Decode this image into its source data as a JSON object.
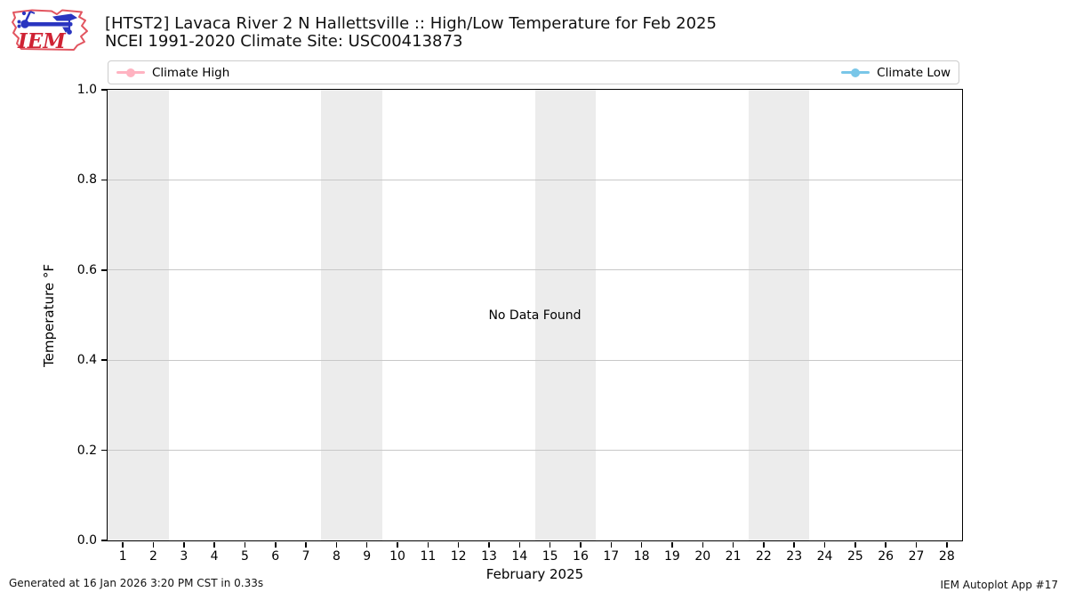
{
  "header": {
    "title_line1": "[HTST2] Lavaca River 2 N Hallettsville :: High/Low Temperature for Feb 2025",
    "title_line2": "NCEI 1991-2020 Climate Site: USC00413873",
    "logo_text": "IEM"
  },
  "legend": {
    "items": [
      {
        "label": "Climate High",
        "color": "#ffb3c1"
      },
      {
        "label": "Climate Low",
        "color": "#79c6e8"
      }
    ]
  },
  "chart_data": {
    "type": "line",
    "title": "[HTST2] Lavaca River 2 N Hallettsville :: High/Low Temperature for Feb 2025",
    "subtitle": "NCEI 1991-2020 Climate Site: USC00413873",
    "xlabel": "February 2025",
    "ylabel": "Temperature °F",
    "xlim": [
      0.5,
      28.5
    ],
    "ylim": [
      0.0,
      1.0
    ],
    "x_ticks": [
      1,
      2,
      3,
      4,
      5,
      6,
      7,
      8,
      9,
      10,
      11,
      12,
      13,
      14,
      15,
      16,
      17,
      18,
      19,
      20,
      21,
      22,
      23,
      24,
      25,
      26,
      27,
      28
    ],
    "y_tick_values": [
      0.0,
      0.2,
      0.4,
      0.6,
      0.8,
      1.0
    ],
    "y_tick_labels": [
      "0.0",
      "0.2",
      "0.4",
      "0.6",
      "0.8",
      "1.0"
    ],
    "grid": "horizontal",
    "grid_color": "#c8c8c8",
    "legend_position": "top-span",
    "series": [
      {
        "name": "Climate High",
        "color": "#ffb3c1",
        "x": [],
        "y": []
      },
      {
        "name": "Climate Low",
        "color": "#79c6e8",
        "x": [],
        "y": []
      }
    ],
    "annotation": "No Data Found",
    "weekend_bands": [
      [
        0.5,
        2.5
      ],
      [
        7.5,
        9.5
      ],
      [
        14.5,
        16.5
      ],
      [
        21.5,
        23.5
      ]
    ],
    "band_color": "#ececec"
  },
  "footer": {
    "left": "Generated at 16 Jan 2026 3:20 PM CST in 0.33s",
    "right": "IEM Autoplot App #17"
  }
}
